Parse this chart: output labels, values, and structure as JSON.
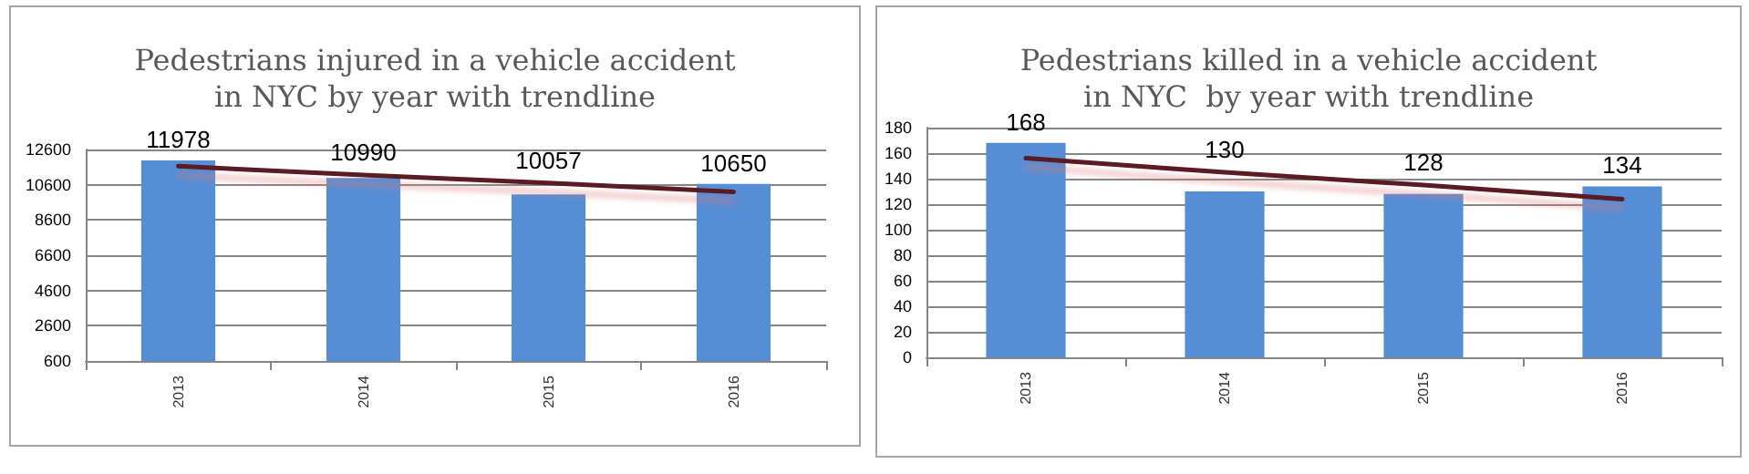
{
  "chart_data": [
    {
      "type": "bar",
      "title": "Pedestrians injured in a vehicle accident\nin NYC by year with trendline",
      "categories": [
        "2013",
        "2014",
        "2015",
        "2016"
      ],
      "ylim": [
        600,
        12600
      ],
      "yticks": [
        600,
        2600,
        4600,
        6600,
        8600,
        10600,
        12600
      ],
      "grid": "y",
      "series": [
        {
          "color": "#558ed5",
          "values": [
            11978,
            10990,
            10057,
            10650
          ],
          "value_labels": [
            "11978",
            "10990",
            "10057",
            "10650"
          ]
        },
        {
          "type": "line",
          "color": "#5a1a22",
          "marker": "none",
          "line_style": "solid",
          "values": [
            11650,
            11150,
            10700,
            10200
          ]
        }
      ]
    },
    {
      "type": "bar",
      "title": "Pedestrians killed in a vehicle accident\nin NYC  by year with trendline",
      "categories": [
        "2013",
        "2014",
        "2015",
        "2016"
      ],
      "ylim": [
        0,
        180
      ],
      "yticks": [
        0,
        20,
        40,
        60,
        80,
        100,
        120,
        140,
        160,
        180
      ],
      "grid": "y",
      "series": [
        {
          "color": "#558ed5",
          "values": [
            168,
            130,
            128,
            134
          ],
          "value_labels": [
            "168",
            "130",
            "128",
            "134"
          ]
        },
        {
          "type": "line",
          "color": "#5a1a22",
          "marker": "none",
          "line_style": "solid",
          "values": [
            156,
            145,
            135,
            124
          ]
        }
      ]
    }
  ]
}
